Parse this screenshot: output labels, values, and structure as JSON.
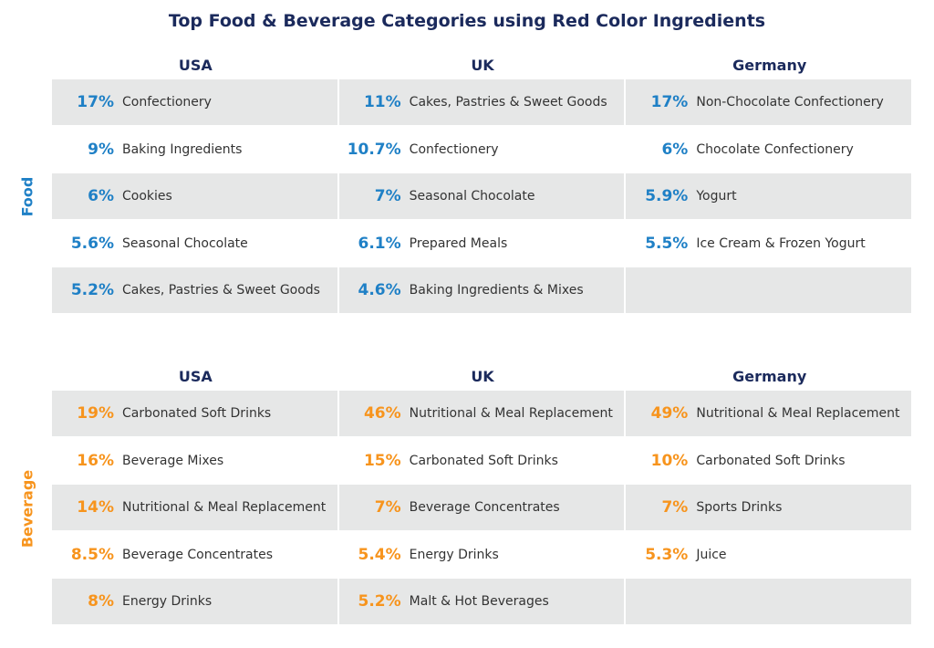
{
  "title": "Top Food & Beverage Categories using Red Color Ingredients",
  "colors": {
    "title": "#1b2a5c",
    "food": "#1f80c6",
    "beverage": "#f7941d",
    "shade": "#e6e7e7"
  },
  "chart_data": {
    "type": "table",
    "title": "Top Food & Beverage Categories using Red Color Ingredients",
    "sections": [
      {
        "name": "Food",
        "columns": [
          {
            "country": "USA",
            "items": [
              {
                "pct": "17%",
                "label": "Confectionery"
              },
              {
                "pct": "9%",
                "label": "Baking Ingredients"
              },
              {
                "pct": "6%",
                "label": "Cookies"
              },
              {
                "pct": "5.6%",
                "label": "Seasonal Chocolate"
              },
              {
                "pct": "5.2%",
                "label": "Cakes, Pastries & Sweet Goods"
              }
            ]
          },
          {
            "country": "UK",
            "items": [
              {
                "pct": "11%",
                "label": "Cakes, Pastries & Sweet Goods"
              },
              {
                "pct": "10.7%",
                "label": "Confectionery"
              },
              {
                "pct": "7%",
                "label": "Seasonal Chocolate"
              },
              {
                "pct": "6.1%",
                "label": "Prepared Meals"
              },
              {
                "pct": "4.6%",
                "label": "Baking Ingredients & Mixes"
              }
            ]
          },
          {
            "country": "Germany",
            "items": [
              {
                "pct": "17%",
                "label": "Non-Chocolate Confectionery"
              },
              {
                "pct": "6%",
                "label": "Chocolate Confectionery"
              },
              {
                "pct": "5.9%",
                "label": "Yogurt"
              },
              {
                "pct": "5.5%",
                "label": "Ice Cream & Frozen Yogurt"
              }
            ]
          }
        ]
      },
      {
        "name": "Beverage",
        "columns": [
          {
            "country": "USA",
            "items": [
              {
                "pct": "19%",
                "label": "Carbonated Soft Drinks"
              },
              {
                "pct": "16%",
                "label": "Beverage Mixes"
              },
              {
                "pct": "14%",
                "label": "Nutritional & Meal Replacement"
              },
              {
                "pct": "8.5%",
                "label": "Beverage Concentrates"
              },
              {
                "pct": "8%",
                "label": "Energy Drinks"
              }
            ]
          },
          {
            "country": "UK",
            "items": [
              {
                "pct": "46%",
                "label": "Nutritional & Meal Replacement"
              },
              {
                "pct": "15%",
                "label": "Carbonated Soft Drinks"
              },
              {
                "pct": "7%",
                "label": "Beverage Concentrates"
              },
              {
                "pct": "5.4%",
                "label": "Energy Drinks"
              },
              {
                "pct": "5.2%",
                "label": "Malt & Hot Beverages"
              }
            ]
          },
          {
            "country": "Germany",
            "items": [
              {
                "pct": "49%",
                "label": "Nutritional & Meal Replacement"
              },
              {
                "pct": "10%",
                "label": "Carbonated Soft Drinks"
              },
              {
                "pct": "7%",
                "label": "Sports Drinks"
              },
              {
                "pct": "5.3%",
                "label": "Juice"
              }
            ]
          }
        ]
      }
    ]
  }
}
